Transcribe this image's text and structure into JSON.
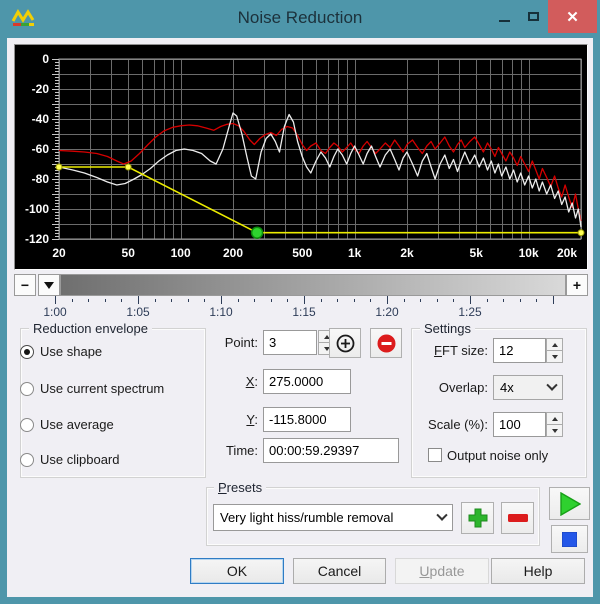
{
  "window": {
    "title": "Noise Reduction",
    "controls": {
      "minimize": "minimize",
      "maximize": "maximize",
      "close": "✕"
    }
  },
  "icons": {
    "app_logo": "goldwave-wave-logo",
    "add_point": "circled-plus",
    "remove_point": "red-circle-minus",
    "preset_add": "green-plus",
    "preset_remove": "red-minus",
    "play": "green-triangle",
    "stop": "blue-square"
  },
  "colors": {
    "titlebar": "#4e96aa",
    "close_button": "#d25c5c",
    "dialog_bg": "#f0eff4",
    "plot_bg": "#000000",
    "grid": "#6b6b6b",
    "spectrum_red": "#d60000",
    "spectrum_white": "#ececec",
    "envelope_yellow": "#ecec00",
    "selected_point_green": "#2ed32e",
    "ruler_text": "#2e3d58"
  },
  "scrollbar": {
    "zoom_out": "−",
    "dropdown": "▼",
    "zoom_in": "+"
  },
  "timeline": {
    "labels": [
      "1:00",
      "1:05",
      "1:10",
      "1:15",
      "1:20",
      "1:25"
    ],
    "major_start_x": 41,
    "major_spacing": 83,
    "minor_step": 16.6,
    "minor_count": 31
  },
  "chart_data": {
    "type": "line",
    "xscale": "log",
    "xlim": [
      20,
      20000
    ],
    "ylim": [
      -120,
      0
    ],
    "ylabel_ticks": [
      "0",
      "-20",
      "-40",
      "-60",
      "-80",
      "-100",
      "-120"
    ],
    "y_tick_values": [
      0,
      -20,
      -40,
      -60,
      -80,
      -100,
      -120
    ],
    "x_ticks": [
      {
        "f": 20,
        "label": "20"
      },
      {
        "f": 50,
        "label": "50"
      },
      {
        "f": 100,
        "label": "100"
      },
      {
        "f": 200,
        "label": "200"
      },
      {
        "f": 500,
        "label": "500"
      },
      {
        "f": 1000,
        "label": "1k"
      },
      {
        "f": 2000,
        "label": "2k"
      },
      {
        "f": 5000,
        "label": "5k"
      },
      {
        "f": 10000,
        "label": "10k"
      },
      {
        "f": 20000,
        "label": "20k"
      }
    ],
    "x_grid_minor": [
      30,
      40,
      60,
      70,
      80,
      90,
      300,
      400,
      600,
      700,
      800,
      900,
      3000,
      4000,
      6000,
      7000,
      8000,
      9000
    ],
    "y_grid_step": 10,
    "series": [
      {
        "name": "current-spectrum",
        "color": "#d60000",
        "points": [
          [
            20,
            -61
          ],
          [
            24,
            -61.5
          ],
          [
            28,
            -62
          ],
          [
            33,
            -63
          ],
          [
            38,
            -65
          ],
          [
            43,
            -68
          ],
          [
            47,
            -70
          ],
          [
            52,
            -68
          ],
          [
            58,
            -63
          ],
          [
            65,
            -57
          ],
          [
            72,
            -52
          ],
          [
            80,
            -48
          ],
          [
            90,
            -45.5
          ],
          [
            100,
            -44.5
          ],
          [
            112,
            -44
          ],
          [
            125,
            -44.5
          ],
          [
            140,
            -46
          ],
          [
            155,
            -47.5
          ],
          [
            170,
            -45
          ],
          [
            185,
            -43.5
          ],
          [
            200,
            -43
          ],
          [
            215,
            -44.5
          ],
          [
            230,
            -48
          ],
          [
            250,
            -54
          ],
          [
            265,
            -57
          ],
          [
            285,
            -53
          ],
          [
            305,
            -50.5
          ],
          [
            330,
            -49
          ],
          [
            355,
            -51
          ],
          [
            380,
            -47
          ],
          [
            410,
            -45
          ],
          [
            440,
            -46
          ],
          [
            470,
            -51
          ],
          [
            500,
            -57
          ],
          [
            530,
            -61
          ],
          [
            560,
            -58
          ],
          [
            600,
            -56
          ],
          [
            640,
            -61
          ],
          [
            680,
            -63
          ],
          [
            720,
            -59
          ],
          [
            760,
            -56
          ],
          [
            800,
            -58
          ],
          [
            850,
            -62
          ],
          [
            900,
            -59
          ],
          [
            950,
            -56
          ],
          [
            1000,
            -60
          ],
          [
            1060,
            -63
          ],
          [
            1120,
            -58
          ],
          [
            1180,
            -55
          ],
          [
            1250,
            -59
          ],
          [
            1320,
            -63
          ],
          [
            1400,
            -60
          ],
          [
            1500,
            -56
          ],
          [
            1600,
            -59
          ],
          [
            1700,
            -54
          ],
          [
            1800,
            -58
          ],
          [
            1900,
            -62
          ],
          [
            2000,
            -57
          ],
          [
            2150,
            -54
          ],
          [
            2300,
            -59
          ],
          [
            2450,
            -63
          ],
          [
            2600,
            -58
          ],
          [
            2750,
            -55
          ],
          [
            2900,
            -60
          ],
          [
            3100,
            -56
          ],
          [
            3300,
            -52
          ],
          [
            3500,
            -58
          ],
          [
            3700,
            -62
          ],
          [
            3900,
            -57
          ],
          [
            4100,
            -54
          ],
          [
            4300,
            -59
          ],
          [
            4600,
            -55
          ],
          [
            4900,
            -52
          ],
          [
            5200,
            -57
          ],
          [
            5500,
            -62
          ],
          [
            5800,
            -56
          ],
          [
            6100,
            -60
          ],
          [
            6400,
            -65
          ],
          [
            6700,
            -59
          ],
          [
            7000,
            -63
          ],
          [
            7400,
            -68
          ],
          [
            7800,
            -62
          ],
          [
            8200,
            -66
          ],
          [
            8600,
            -71
          ],
          [
            9000,
            -65
          ],
          [
            9500,
            -70
          ],
          [
            10000,
            -75
          ],
          [
            10500,
            -68
          ],
          [
            11000,
            -74
          ],
          [
            11500,
            -80
          ],
          [
            12000,
            -73
          ],
          [
            12700,
            -79
          ],
          [
            13400,
            -85
          ],
          [
            14100,
            -78
          ],
          [
            14800,
            -86
          ],
          [
            15500,
            -92
          ],
          [
            16200,
            -84
          ],
          [
            17000,
            -92
          ],
          [
            17800,
            -99
          ],
          [
            18600,
            -90
          ],
          [
            19300,
            -100
          ],
          [
            20000,
            -108
          ]
        ]
      },
      {
        "name": "noise-envelope-spectrum",
        "color": "#ececec",
        "points": [
          [
            20,
            -72
          ],
          [
            24,
            -74
          ],
          [
            28,
            -76
          ],
          [
            33,
            -79
          ],
          [
            38,
            -82
          ],
          [
            43,
            -84
          ],
          [
            48,
            -83
          ],
          [
            54,
            -80
          ],
          [
            60,
            -77
          ],
          [
            67,
            -73
          ],
          [
            75,
            -68
          ],
          [
            84,
            -64
          ],
          [
            94,
            -61
          ],
          [
            105,
            -60
          ],
          [
            118,
            -61
          ],
          [
            132,
            -63
          ],
          [
            148,
            -68
          ],
          [
            160,
            -70
          ],
          [
            175,
            -60
          ],
          [
            190,
            -45
          ],
          [
            200,
            -36
          ],
          [
            210,
            -38
          ],
          [
            225,
            -50
          ],
          [
            240,
            -65
          ],
          [
            255,
            -78
          ],
          [
            270,
            -80
          ],
          [
            290,
            -62
          ],
          [
            310,
            -53
          ],
          [
            330,
            -50
          ],
          [
            350,
            -55
          ],
          [
            370,
            -62
          ],
          [
            395,
            -45
          ],
          [
            420,
            -37
          ],
          [
            445,
            -42
          ],
          [
            470,
            -55
          ],
          [
            500,
            -65
          ],
          [
            530,
            -72
          ],
          [
            560,
            -76
          ],
          [
            600,
            -68
          ],
          [
            640,
            -62
          ],
          [
            680,
            -66
          ],
          [
            720,
            -72
          ],
          [
            760,
            -65
          ],
          [
            800,
            -60
          ],
          [
            850,
            -64
          ],
          [
            900,
            -70
          ],
          [
            950,
            -63
          ],
          [
            1000,
            -58
          ],
          [
            1060,
            -64
          ],
          [
            1120,
            -70
          ],
          [
            1180,
            -63
          ],
          [
            1250,
            -58
          ],
          [
            1320,
            -65
          ],
          [
            1400,
            -72
          ],
          [
            1500,
            -64
          ],
          [
            1600,
            -60
          ],
          [
            1700,
            -67
          ],
          [
            1800,
            -74
          ],
          [
            1900,
            -66
          ],
          [
            2000,
            -62
          ],
          [
            2150,
            -70
          ],
          [
            2300,
            -78
          ],
          [
            2450,
            -68
          ],
          [
            2600,
            -63
          ],
          [
            2750,
            -72
          ],
          [
            2900,
            -80
          ],
          [
            3100,
            -70
          ],
          [
            3300,
            -64
          ],
          [
            3500,
            -73
          ],
          [
            3700,
            -67
          ],
          [
            3900,
            -75
          ],
          [
            4100,
            -68
          ],
          [
            4300,
            -62
          ],
          [
            4600,
            -70
          ],
          [
            4900,
            -64
          ],
          [
            5200,
            -72
          ],
          [
            5500,
            -66
          ],
          [
            5800,
            -74
          ],
          [
            6100,
            -68
          ],
          [
            6400,
            -76
          ],
          [
            6700,
            -70
          ],
          [
            7000,
            -78
          ],
          [
            7400,
            -72
          ],
          [
            7800,
            -80
          ],
          [
            8200,
            -74
          ],
          [
            8600,
            -82
          ],
          [
            9000,
            -76
          ],
          [
            9500,
            -84
          ],
          [
            10000,
            -78
          ],
          [
            10500,
            -86
          ],
          [
            11000,
            -80
          ],
          [
            11500,
            -88
          ],
          [
            12000,
            -82
          ],
          [
            12700,
            -90
          ],
          [
            13400,
            -84
          ],
          [
            14100,
            -93
          ],
          [
            14800,
            -88
          ],
          [
            15500,
            -97
          ],
          [
            16200,
            -92
          ],
          [
            17000,
            -102
          ],
          [
            17800,
            -96
          ],
          [
            18600,
            -106
          ],
          [
            19300,
            -100
          ],
          [
            20000,
            -112
          ]
        ]
      }
    ],
    "envelope": {
      "name": "reduction-envelope",
      "color": "#ecec00",
      "points": [
        [
          20,
          -72
        ],
        [
          50,
          -72
        ],
        [
          275,
          -115.8
        ],
        [
          20000,
          -115.8
        ]
      ],
      "selected_index": 2
    }
  },
  "reduction_envelope": {
    "title": "Reduction envelope",
    "options": [
      {
        "label": "Use shape",
        "selected": true
      },
      {
        "label": "Use current spectrum",
        "selected": false
      },
      {
        "label": "Use average",
        "selected": false
      },
      {
        "label": "Use clipboard",
        "selected": false
      }
    ]
  },
  "point_editor": {
    "point_label": "Point:",
    "point_value": "3",
    "x_label": "X:",
    "x_value": "275.0000",
    "y_label": "Y:",
    "y_value": "-115.8000",
    "time_label": "Time:",
    "time_value": "00:00:59.29397"
  },
  "settings": {
    "title": "Settings",
    "fft_label": "FFT size:",
    "fft_value": "12",
    "overlap_label": "Overlap:",
    "overlap_value": "4x",
    "scale_label": "Scale (%):",
    "scale_value": "100",
    "output_noise_only": {
      "label": "Output noise only",
      "checked": false
    }
  },
  "presets": {
    "title": "Presets",
    "selected": "Very light hiss/rumble removal"
  },
  "footer": {
    "ok": "OK",
    "cancel": "Cancel",
    "update": "Update",
    "help": "Help"
  }
}
